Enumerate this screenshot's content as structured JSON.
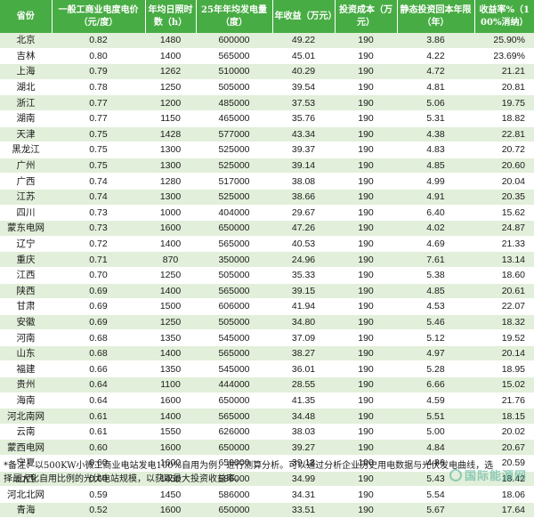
{
  "table": {
    "headers": [
      "省份",
      "一般工商业电度电价（元/度）",
      "年均日照时数（h）",
      "25年年均发电量（度）",
      "年收益（万元）",
      "投资成本（万元）",
      "静态投资回本年限（年）",
      "收益率%（100%消纳）"
    ],
    "rows": [
      [
        "北京",
        "0.82",
        "1480",
        "600000",
        "49.22",
        "190",
        "3.86",
        "25.90%"
      ],
      [
        "吉林",
        "0.80",
        "1400",
        "565000",
        "45.01",
        "190",
        "4.22",
        "23.69%"
      ],
      [
        "上海",
        "0.79",
        "1262",
        "510000",
        "40.29",
        "190",
        "4.72",
        "21.21"
      ],
      [
        "湖北",
        "0.78",
        "1250",
        "505000",
        "39.54",
        "190",
        "4.81",
        "20.81"
      ],
      [
        "浙江",
        "0.77",
        "1200",
        "485000",
        "37.53",
        "190",
        "5.06",
        "19.75"
      ],
      [
        "湖南",
        "0.77",
        "1150",
        "465000",
        "35.76",
        "190",
        "5.31",
        "18.82"
      ],
      [
        "天津",
        "0.75",
        "1428",
        "577000",
        "43.34",
        "190",
        "4.38",
        "22.81"
      ],
      [
        "黑龙江",
        "0.75",
        "1300",
        "525000",
        "39.37",
        "190",
        "4.83",
        "20.72"
      ],
      [
        "广州",
        "0.75",
        "1300",
        "525000",
        "39.14",
        "190",
        "4.85",
        "20.60"
      ],
      [
        "广西",
        "0.74",
        "1280",
        "517000",
        "38.08",
        "190",
        "4.99",
        "20.04"
      ],
      [
        "江苏",
        "0.74",
        "1300",
        "525000",
        "38.66",
        "190",
        "4.91",
        "20.35"
      ],
      [
        "四川",
        "0.73",
        "1000",
        "404000",
        "29.67",
        "190",
        "6.40",
        "15.62"
      ],
      [
        "蒙东电网",
        "0.73",
        "1600",
        "650000",
        "47.26",
        "190",
        "4.02",
        "24.87"
      ],
      [
        "辽宁",
        "0.72",
        "1400",
        "565000",
        "40.53",
        "190",
        "4.69",
        "21.33"
      ],
      [
        "重庆",
        "0.71",
        "870",
        "350000",
        "24.96",
        "190",
        "7.61",
        "13.14"
      ],
      [
        "江西",
        "0.70",
        "1250",
        "505000",
        "35.33",
        "190",
        "5.38",
        "18.60"
      ],
      [
        "陕西",
        "0.69",
        "1400",
        "565000",
        "39.15",
        "190",
        "4.85",
        "20.61"
      ],
      [
        "甘肃",
        "0.69",
        "1500",
        "606000",
        "41.94",
        "190",
        "4.53",
        "22.07"
      ],
      [
        "安徽",
        "0.69",
        "1250",
        "505000",
        "34.80",
        "190",
        "5.46",
        "18.32"
      ],
      [
        "河南",
        "0.68",
        "1350",
        "545000",
        "37.09",
        "190",
        "5.12",
        "19.52"
      ],
      [
        "山东",
        "0.68",
        "1400",
        "565000",
        "38.27",
        "190",
        "4.97",
        "20.14"
      ],
      [
        "福建",
        "0.66",
        "1350",
        "545000",
        "36.01",
        "190",
        "5.28",
        "18.95"
      ],
      [
        "贵州",
        "0.64",
        "1100",
        "444000",
        "28.55",
        "190",
        "6.66",
        "15.02"
      ],
      [
        "海南",
        "0.64",
        "1600",
        "650000",
        "41.35",
        "190",
        "4.59",
        "21.76"
      ],
      [
        "河北南网",
        "0.61",
        "1400",
        "565000",
        "34.48",
        "190",
        "5.51",
        "18.15"
      ],
      [
        "云南",
        "0.61",
        "1550",
        "626000",
        "38.03",
        "190",
        "5.00",
        "20.02"
      ],
      [
        "蒙西电网",
        "0.60",
        "1600",
        "650000",
        "39.27",
        "190",
        "4.84",
        "20.67"
      ],
      [
        "宁夏",
        "0.60",
        "1600",
        "650000",
        "39.13",
        "190",
        "4.86",
        "20.59"
      ],
      [
        "山西",
        "0.60",
        "1450",
        "586000",
        "34.99",
        "190",
        "5.43",
        "18.42"
      ],
      [
        "河北北网",
        "0.59",
        "1450",
        "586000",
        "34.31",
        "190",
        "5.54",
        "18.06"
      ],
      [
        "青海",
        "0.52",
        "1600",
        "650000",
        "33.51",
        "190",
        "5.67",
        "17.64"
      ]
    ]
  },
  "note": "*备注：以500KW小微工商业电站发电100%自用为例，进行测算分析。可以通过分析企业历史用电数据与光伏发电曲线，选择最大化自用比例的光伏电站规模，以获取最大投资收益率。",
  "watermark": "国际能源网"
}
